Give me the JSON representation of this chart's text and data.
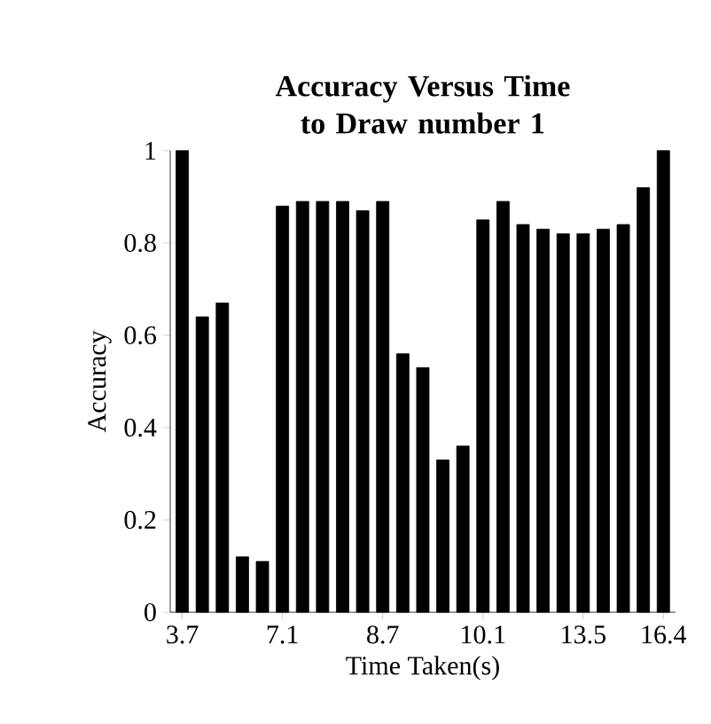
{
  "chart_data": {
    "type": "bar",
    "title": "Accuracy Versus Time to Draw number 1",
    "xlabel": "Time Taken(s)",
    "ylabel": "Accuracy",
    "categories": [
      "3.7",
      null,
      null,
      null,
      null,
      "7.1",
      null,
      null,
      null,
      null,
      "8.7",
      null,
      null,
      null,
      null,
      "10.1",
      null,
      null,
      null,
      null,
      "13.5",
      null,
      null,
      null,
      "16.4"
    ],
    "values": [
      1.0,
      0.64,
      0.67,
      0.12,
      0.11,
      0.88,
      0.89,
      0.89,
      0.89,
      0.87,
      0.89,
      0.56,
      0.53,
      0.33,
      0.36,
      0.85,
      0.89,
      0.84,
      0.83,
      0.82,
      0.82,
      0.83,
      0.84,
      0.92,
      1.0
    ],
    "color": "#000000",
    "ylim": [
      0,
      1
    ],
    "yticks": [
      0,
      0.2,
      0.4,
      0.6,
      0.8,
      1
    ]
  }
}
